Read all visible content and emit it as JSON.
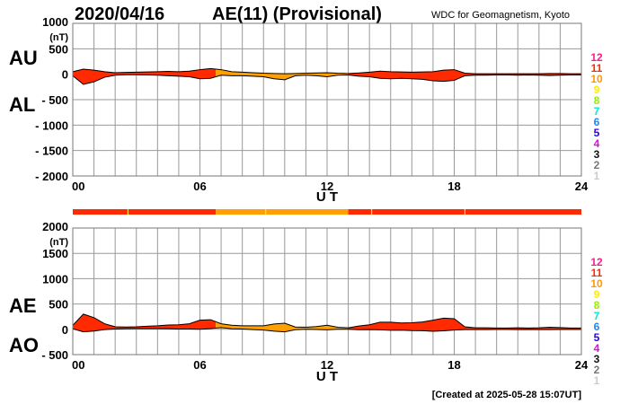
{
  "header": {
    "date": "2020/04/16",
    "title": "AE(11) (Provisional)",
    "source": "WDC for Geomagnetism, Kyoto"
  },
  "footer": {
    "created": "[Created at 2025-05-28 15:07UT]"
  },
  "colors": {
    "station_11": "#ff2a00",
    "station_10": "#ff9f00",
    "marker": "#ffe040",
    "grid": "#999999"
  },
  "legend": {
    "items": [
      {
        "label": "12",
        "color": "#ff1a8c"
      },
      {
        "label": "11",
        "color": "#ff2a00"
      },
      {
        "label": "10",
        "color": "#ff9900"
      },
      {
        "label": "9",
        "color": "#ffee00"
      },
      {
        "label": "8",
        "color": "#99ee00"
      },
      {
        "label": "7",
        "color": "#00eecc"
      },
      {
        "label": "6",
        "color": "#1a88ff"
      },
      {
        "label": "5",
        "color": "#2a00ee"
      },
      {
        "label": "4",
        "color": "#ee00ee"
      },
      {
        "label": "3",
        "color": "#111111"
      },
      {
        "label": "2",
        "color": "#777777"
      },
      {
        "label": "1",
        "color": "#cccccc"
      }
    ]
  },
  "chart_data": [
    {
      "type": "area",
      "name": "AU/AL",
      "labels": {
        "upper": "AU",
        "lower": "AL"
      },
      "xlabel": "U T",
      "ylabel": "(nT)",
      "xlim": [
        0,
        24
      ],
      "ylim": [
        -2000,
        1000
      ],
      "xticks": [
        "00",
        "06",
        "12",
        "18",
        "24"
      ],
      "yticks": [
        "1000",
        "500",
        "0",
        "- 500",
        "- 1000",
        "- 1500",
        "- 2000"
      ],
      "grid": true,
      "x_step_hours": 0.5,
      "AU": [
        50,
        100,
        80,
        50,
        30,
        35,
        40,
        45,
        50,
        55,
        50,
        60,
        90,
        110,
        90,
        50,
        40,
        30,
        20,
        15,
        10,
        15,
        20,
        25,
        30,
        20,
        15,
        25,
        40,
        60,
        50,
        45,
        40,
        45,
        50,
        80,
        90,
        20,
        10,
        10,
        10,
        10,
        10,
        10,
        10,
        15,
        15,
        10,
        10
      ],
      "AL": [
        -30,
        -200,
        -150,
        -60,
        -20,
        -10,
        -10,
        -15,
        -20,
        -30,
        -40,
        -50,
        -90,
        -80,
        -20,
        -30,
        -30,
        -40,
        -50,
        -90,
        -110,
        -30,
        -20,
        -30,
        -50,
        -20,
        -15,
        -40,
        -50,
        -80,
        -90,
        -80,
        -90,
        -100,
        -130,
        -140,
        -120,
        -30,
        -20,
        -20,
        -15,
        -15,
        -20,
        -15,
        -20,
        -25,
        -20,
        -15,
        -15
      ]
    },
    {
      "type": "area",
      "name": "AE/AO",
      "labels": {
        "upper": "AE",
        "lower": "AO"
      },
      "xlabel": "U T",
      "ylabel": "(nT)",
      "xlim": [
        0,
        24
      ],
      "ylim": [
        -500,
        2000
      ],
      "xticks": [
        "00",
        "06",
        "12",
        "18",
        "24"
      ],
      "yticks": [
        "2000",
        "1500",
        "1000",
        "500",
        "0",
        "- 500"
      ],
      "grid": true,
      "derived": "AE = AU - AL, AO = (AU + AL) / 2"
    }
  ],
  "station_count_bar": {
    "segments": [
      {
        "start": 0,
        "end": 6.75,
        "stations": 11
      },
      {
        "start": 6.75,
        "end": 13,
        "stations": 10
      },
      {
        "start": 13,
        "end": 24,
        "stations": 11
      }
    ],
    "markers": [
      2.6,
      9.1,
      14.1,
      18.5
    ]
  }
}
